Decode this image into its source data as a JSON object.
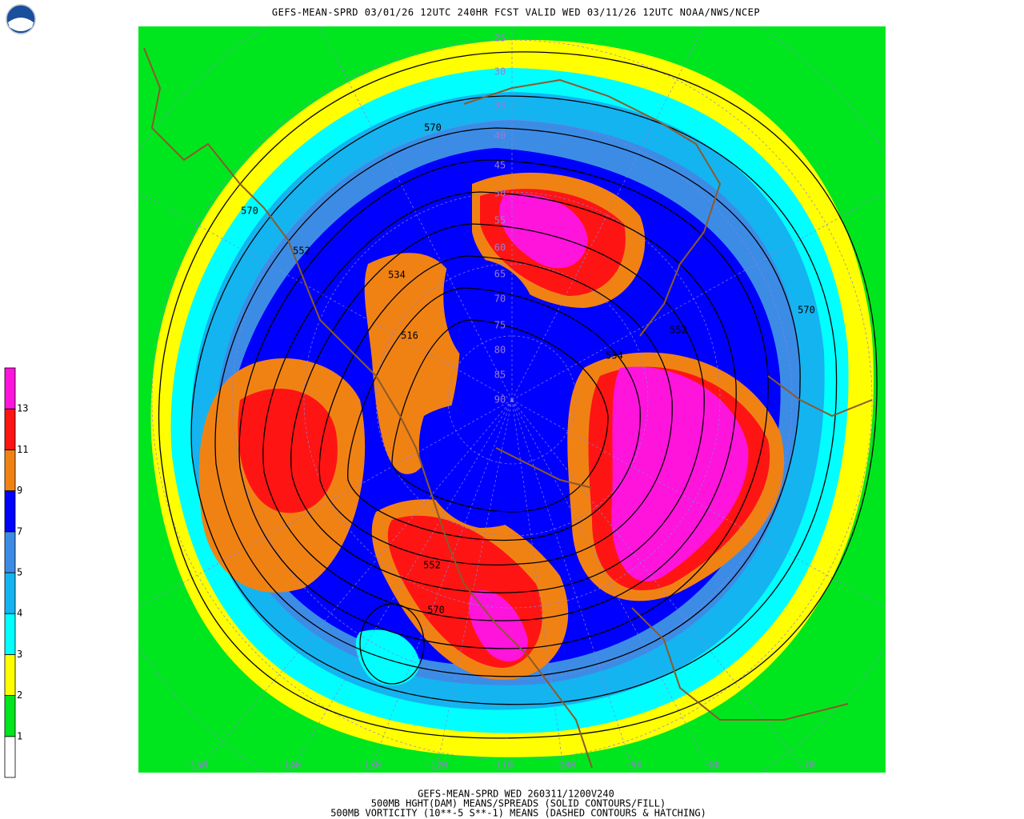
{
  "header": {
    "title": "GEFS-MEAN-SPRD 03/01/26 12UTC 240HR FCST VALID WED 03/11/26 12UTC NOAA/NWS/NCEP"
  },
  "footer": {
    "lines": [
      "GEFS-MEAN-SPRD WED 260311/1200V240",
      "500MB HGHT(DAM) MEANS/SPREADS (SOLID CONTOURS/FILL)",
      "500MB VORTICITY (10**-5 S**-1) MEANS (DASHED CONTOURS & HATCHING)"
    ]
  },
  "colorbar": {
    "labels": [
      "1",
      "2",
      "3",
      "4",
      "5",
      "7",
      "9",
      "11",
      "13"
    ],
    "colors": [
      "#ffffff",
      "#00e61e",
      "#ffff00",
      "#00ffff",
      "#14b4f0",
      "#3c8ce6",
      "#0000ff",
      "#f08214",
      "#ff1414",
      "#ff14dc"
    ]
  },
  "map": {
    "latitude_labels": [
      "25",
      "30",
      "35",
      "40",
      "45",
      "50",
      "55",
      "60",
      "65",
      "70",
      "75",
      "80",
      "85",
      "90"
    ],
    "longitude_labels": [
      "-150",
      "-140",
      "-130",
      "-120",
      "-110",
      "-100",
      "-90",
      "-80",
      "-70"
    ],
    "contour_labels": [
      "570",
      "570",
      "552",
      "534",
      "516",
      "552",
      "534",
      "570",
      "552",
      "570"
    ]
  }
}
